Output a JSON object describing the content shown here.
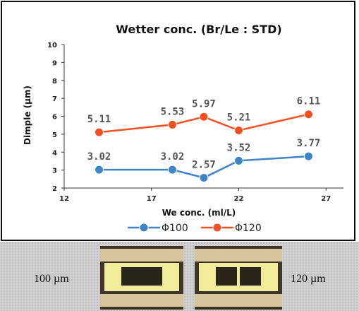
{
  "chart_data": {
    "type": "line",
    "title": "Wetter conc. (Br/Le : STD)",
    "xlabel": "We conc. (ml/L)",
    "ylabel": "Dimple (µm)",
    "xlim": [
      12,
      28
    ],
    "ylim": [
      2,
      10
    ],
    "xticks": [
      12,
      17,
      22,
      27
    ],
    "yticks": [
      2,
      3,
      4,
      5,
      6,
      7,
      8,
      9,
      10
    ],
    "grid": "none",
    "legend": "bottom",
    "series": [
      {
        "name": "Φ100",
        "color": "#3d85c6",
        "x": [
          14,
          18.2,
          20,
          22,
          26
        ],
        "y": [
          3.02,
          3.02,
          2.57,
          3.52,
          3.77
        ],
        "labels": [
          "3.02",
          "3.02",
          "2.57",
          "3.52",
          "3.77"
        ]
      },
      {
        "name": "Φ120",
        "color": "#f25022",
        "x": [
          14,
          18.2,
          20,
          22,
          26
        ],
        "y": [
          5.11,
          5.53,
          5.97,
          5.21,
          6.11
        ],
        "labels": [
          "5.11",
          "5.53",
          "5.97",
          "5.21",
          "6.11"
        ]
      }
    ]
  },
  "photos": {
    "left_label": "100 µm",
    "right_label": "120 µm"
  }
}
